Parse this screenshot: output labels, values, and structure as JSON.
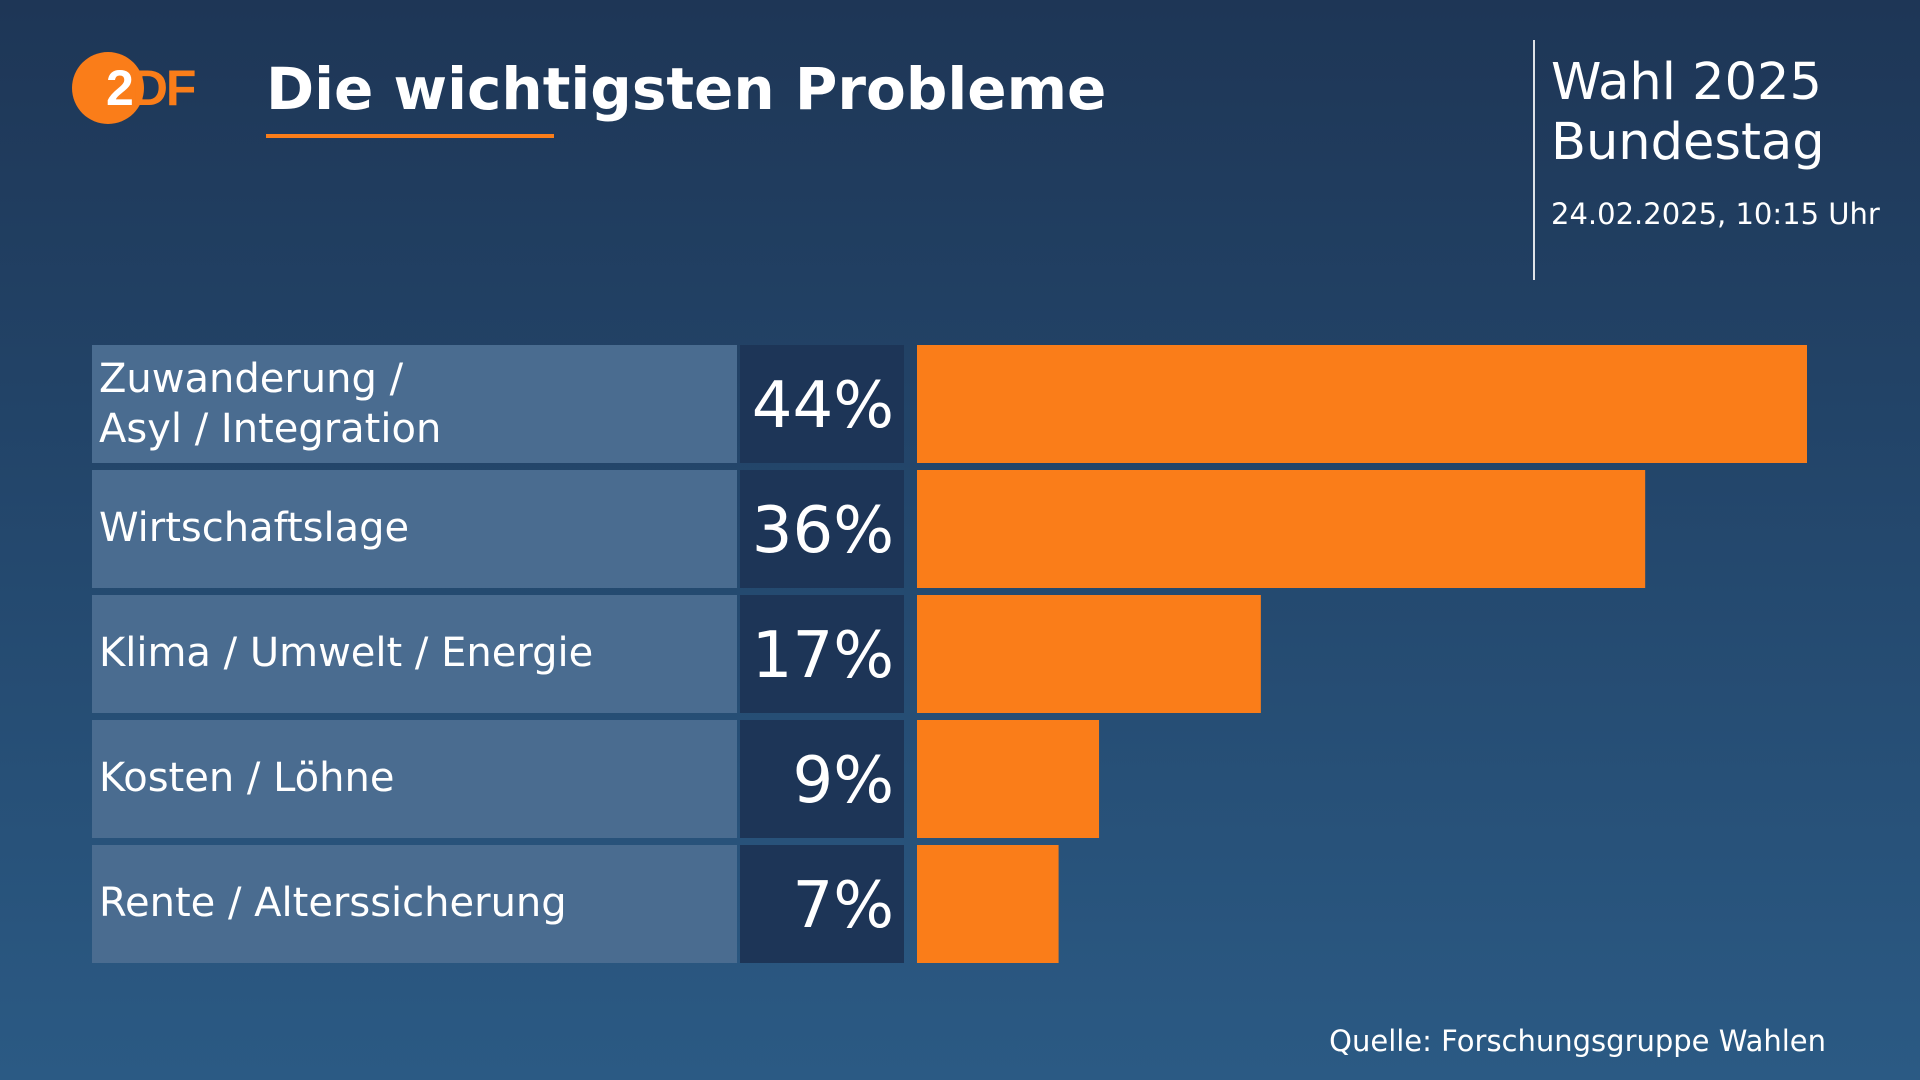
{
  "header": {
    "logo_text_z": "2",
    "logo_text_df": "DF",
    "title": "Die wichtigsten Probleme",
    "election_line1": "Wahl 2025",
    "election_line2": "Bundestag",
    "date": "24.02.2025, 10:15 Uhr"
  },
  "footer": {
    "source": "Quelle: Forschungsgruppe Wahlen"
  },
  "colors": {
    "accent": "#fa7d19",
    "bar": "#fa7d19",
    "label_bg": "#4a6c90",
    "value_bg": "#1d3557"
  },
  "chart_data": {
    "type": "bar",
    "orientation": "horizontal",
    "categories": [
      [
        "Zuwanderung /",
        "Asyl / Integration"
      ],
      [
        "Wirtschaftslage"
      ],
      [
        "Klima / Umwelt / Energie"
      ],
      [
        "Kosten / Löhne"
      ],
      [
        "Rente / Alterssicherung"
      ]
    ],
    "values": [
      44,
      36,
      17,
      9,
      7
    ],
    "value_labels": [
      "44%",
      "36%",
      "17%",
      "9%",
      "7%"
    ],
    "unit": "%",
    "xlim": [
      0,
      44
    ],
    "grid": false,
    "legend": "none"
  }
}
